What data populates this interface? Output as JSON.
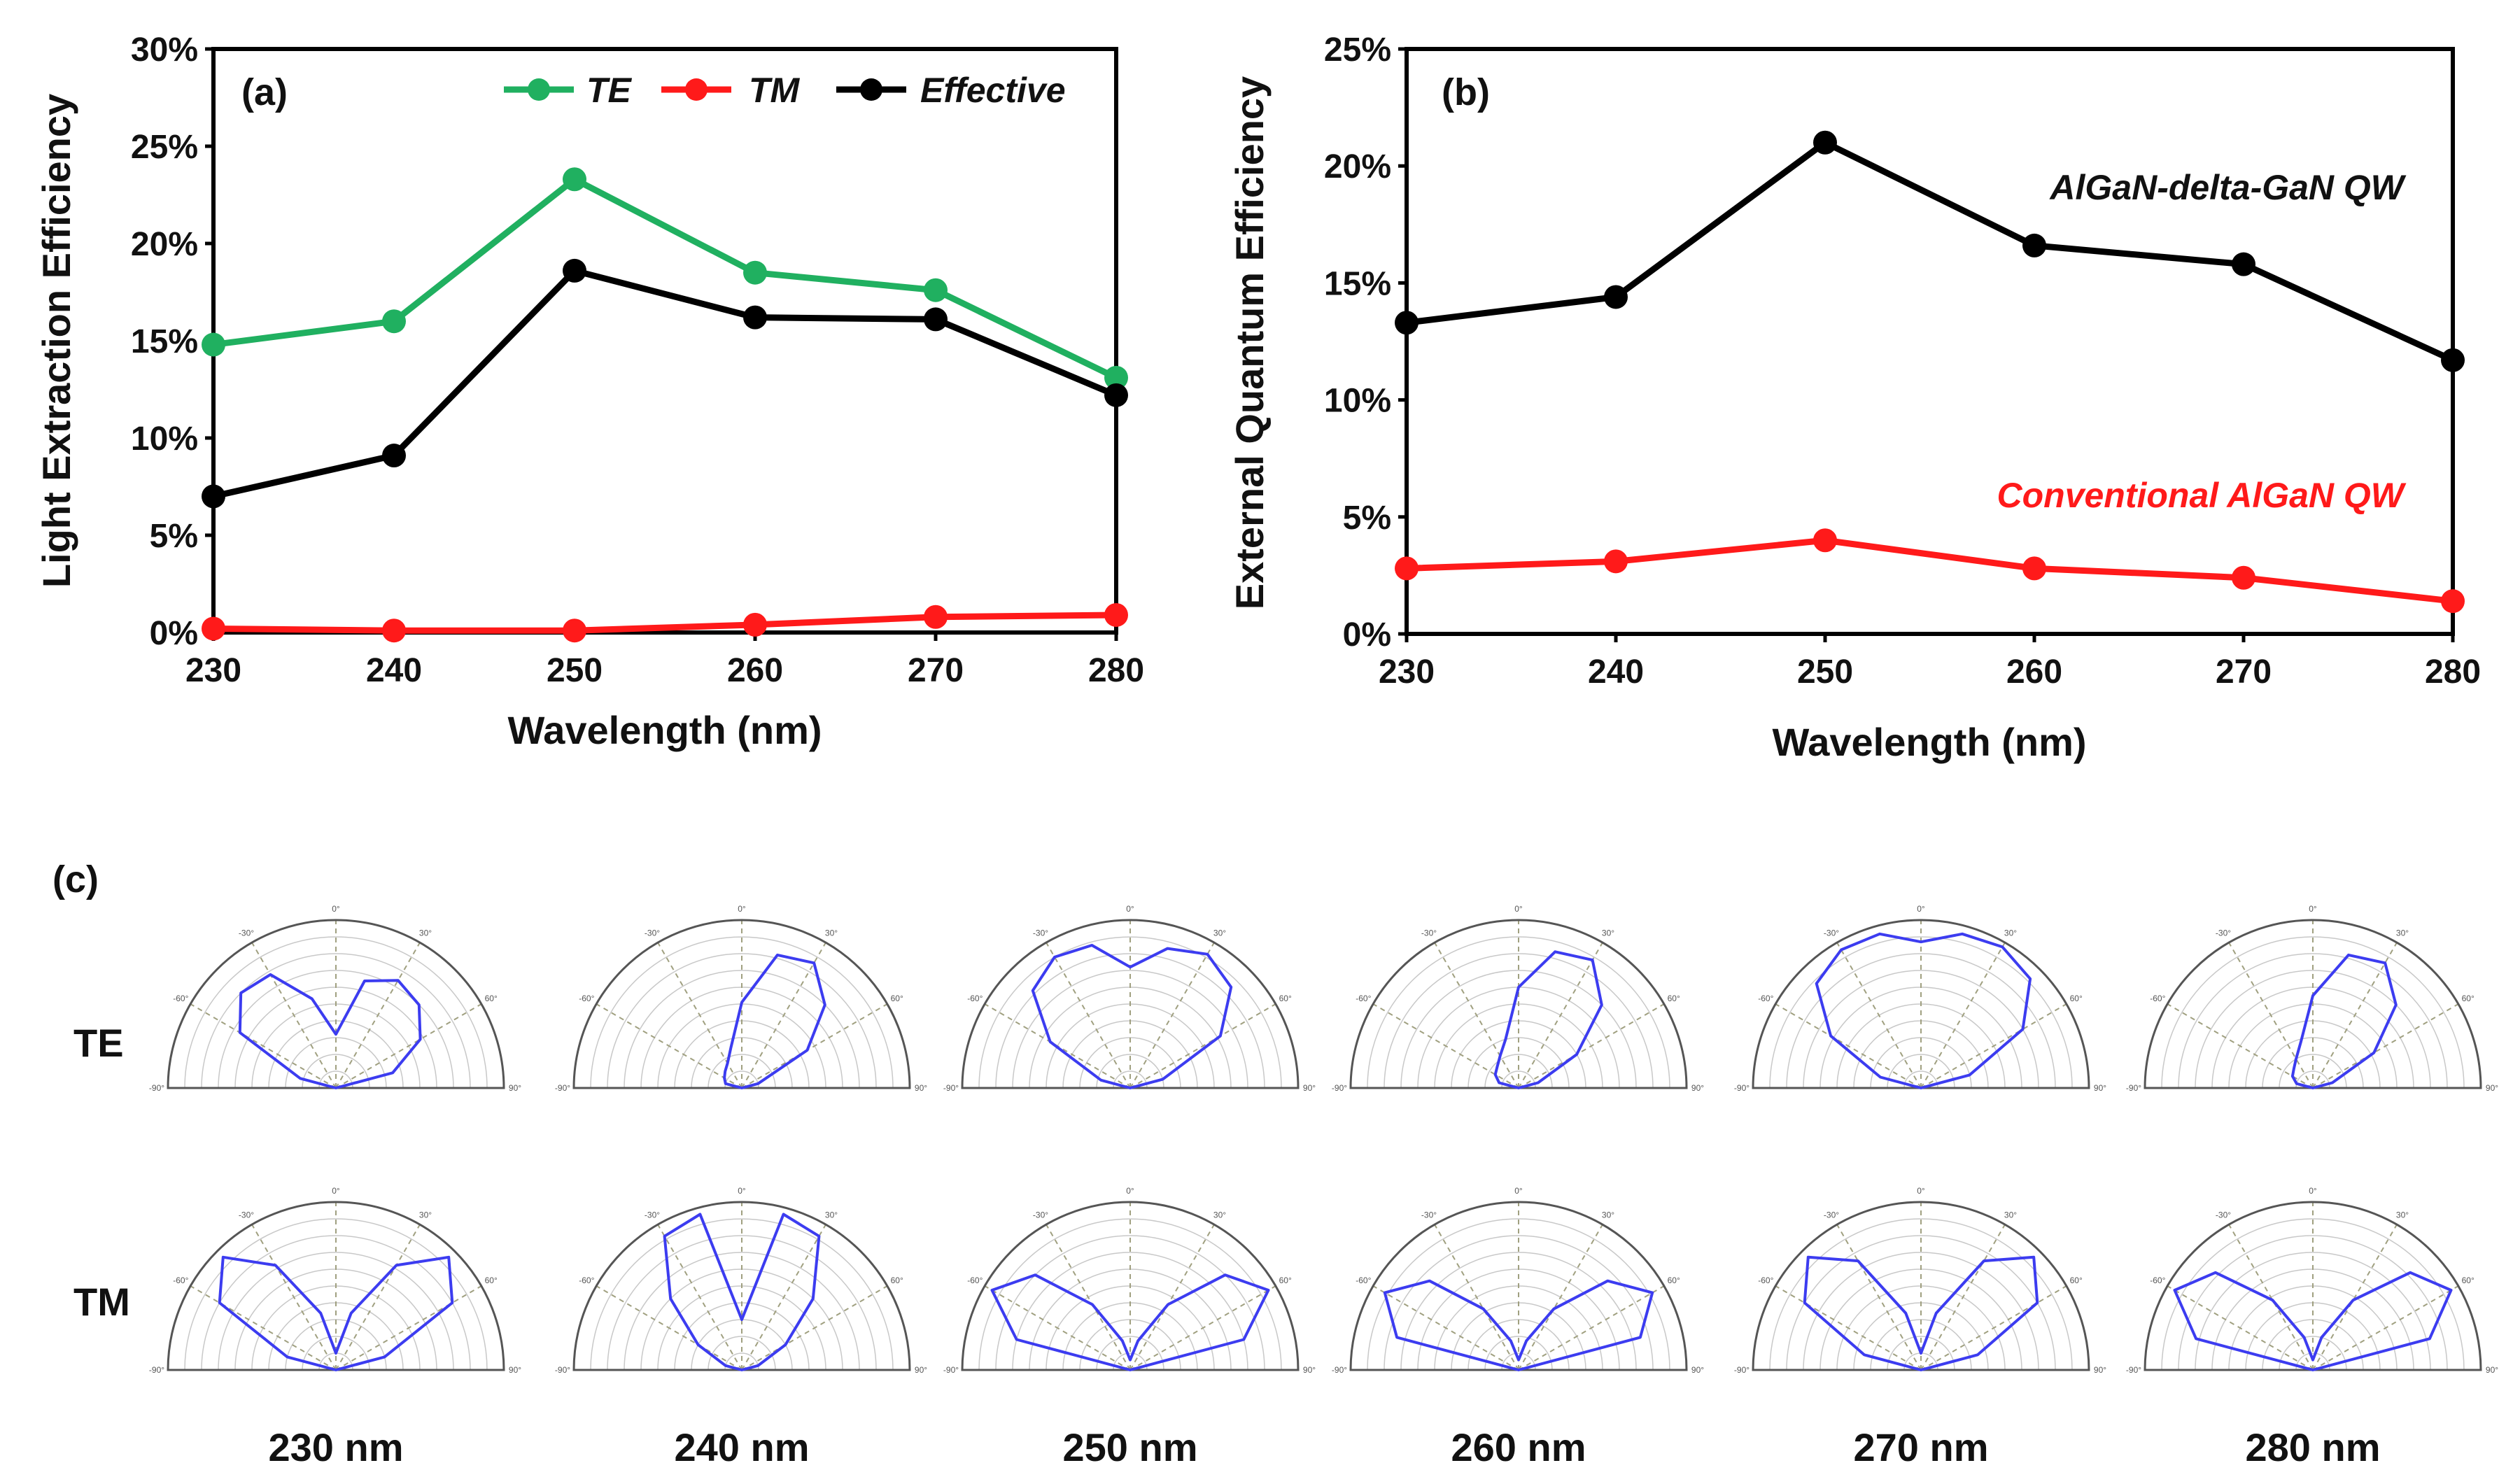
{
  "colors": {
    "te": "#20b060",
    "tm": "#ff1a1a",
    "effective": "#000000",
    "polar_curve": "#3c3cf0",
    "polar_grid": "#c8c8c8",
    "polar_spoke": "#a0a080"
  },
  "chart_data": [
    {
      "type": "line",
      "panel_label": "(a)",
      "xlabel": "Wavelength (nm)",
      "ylabel": "Light Extraction Efficiency",
      "x": [
        230,
        240,
        250,
        260,
        270,
        280
      ],
      "xlim": [
        230,
        280
      ],
      "x_ticks": [
        "230",
        "240",
        "250",
        "260",
        "270",
        "280"
      ],
      "ylim": [
        0,
        30
      ],
      "y_ticks": [
        "0%",
        "5%",
        "10%",
        "15%",
        "20%",
        "25%",
        "30%"
      ],
      "legend_position": "top-right",
      "series": [
        {
          "name": "TE",
          "color": "#20b060",
          "values": [
            14.8,
            16.0,
            23.3,
            18.5,
            17.6,
            13.1
          ]
        },
        {
          "name": "TM",
          "color": "#ff1a1a",
          "values": [
            0.2,
            0.1,
            0.1,
            0.4,
            0.8,
            0.9
          ]
        },
        {
          "name": "Effective",
          "color": "#000000",
          "values": [
            7.0,
            9.1,
            18.6,
            16.2,
            16.1,
            12.2
          ]
        }
      ]
    },
    {
      "type": "line",
      "panel_label": "(b)",
      "xlabel": "Wavelength (nm)",
      "ylabel": "External Quantum Efficiency",
      "x": [
        230,
        240,
        250,
        260,
        270,
        280
      ],
      "xlim": [
        230,
        280
      ],
      "x_ticks": [
        "230",
        "240",
        "250",
        "260",
        "270",
        "280"
      ],
      "ylim": [
        0,
        25
      ],
      "y_ticks": [
        "0%",
        "5%",
        "10%",
        "15%",
        "20%",
        "25%"
      ],
      "series": [
        {
          "name": "AlGaN-delta-GaN QW",
          "color": "#000000",
          "values": [
            13.3,
            14.4,
            21.0,
            16.6,
            15.8,
            11.7
          ]
        },
        {
          "name": "Conventional AlGaN QW",
          "color": "#ff1a1a",
          "values": [
            2.8,
            3.1,
            4.0,
            2.8,
            2.4,
            1.4
          ]
        }
      ]
    }
  ],
  "polar": {
    "panel_label": "(c)",
    "row_labels": [
      "TE",
      "TM"
    ],
    "captions": [
      "230 nm",
      "240 nm",
      "250 nm",
      "260 nm",
      "270 nm",
      "280 nm"
    ],
    "angle_labels": [
      "-90°",
      "-60°",
      "-30°",
      "0°",
      "30°",
      "60°",
      "90°"
    ],
    "patterns": {
      "TE": [
        [
          0.0,
          0.22,
          0.66,
          0.8,
          0.78,
          0.55,
          0.32,
          0.66,
          0.74,
          0.7,
          0.58,
          0.35,
          0.0
        ],
        [
          0.0,
          0.1,
          0.12,
          0.14,
          0.17,
          0.25,
          0.51,
          0.82,
          0.86,
          0.7,
          0.45,
          0.1,
          0.0
        ],
        [
          0.0,
          0.18,
          0.55,
          0.82,
          0.9,
          0.88,
          0.72,
          0.86,
          0.92,
          0.85,
          0.62,
          0.2,
          0.0
        ],
        [
          0.0,
          0.12,
          0.16,
          0.18,
          0.22,
          0.3,
          0.6,
          0.84,
          0.88,
          0.7,
          0.4,
          0.12,
          0.0
        ],
        [
          0.0,
          0.25,
          0.62,
          0.88,
          0.95,
          0.95,
          0.87,
          0.95,
          0.97,
          0.92,
          0.7,
          0.3,
          0.0
        ],
        [
          0.0,
          0.1,
          0.14,
          0.16,
          0.2,
          0.28,
          0.55,
          0.82,
          0.86,
          0.7,
          0.42,
          0.12,
          0.0
        ]
      ],
      "TM": [
        [
          0.0,
          0.3,
          0.8,
          0.95,
          0.72,
          0.35,
          0.1,
          0.35,
          0.72,
          0.95,
          0.8,
          0.3,
          0.0
        ],
        [
          0.0,
          0.1,
          0.3,
          0.6,
          0.92,
          0.96,
          0.3,
          0.96,
          0.92,
          0.6,
          0.3,
          0.1,
          0.0
        ],
        [
          0.0,
          0.7,
          0.95,
          0.8,
          0.45,
          0.18,
          0.06,
          0.18,
          0.45,
          0.8,
          0.95,
          0.7,
          0.0
        ],
        [
          0.0,
          0.75,
          0.92,
          0.75,
          0.42,
          0.18,
          0.06,
          0.18,
          0.42,
          0.75,
          0.92,
          0.75,
          0.0
        ],
        [
          0.0,
          0.35,
          0.8,
          0.95,
          0.75,
          0.35,
          0.1,
          0.35,
          0.75,
          0.95,
          0.8,
          0.35,
          0.0
        ],
        [
          0.0,
          0.72,
          0.95,
          0.82,
          0.48,
          0.2,
          0.06,
          0.2,
          0.48,
          0.82,
          0.95,
          0.72,
          0.0
        ]
      ]
    }
  }
}
